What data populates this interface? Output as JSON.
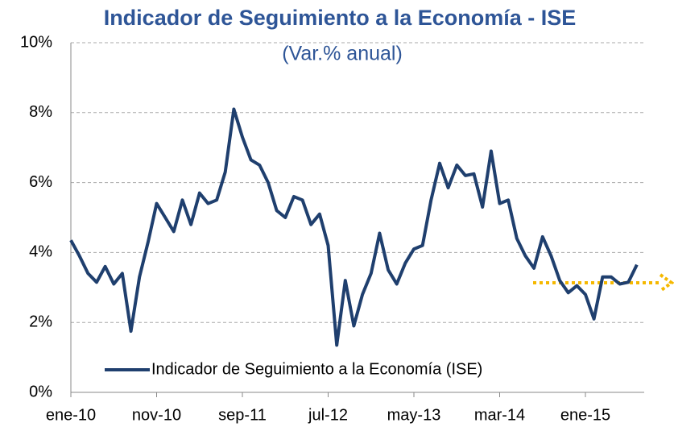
{
  "chart_data": {
    "type": "line",
    "title": "Indicador de Seguimiento a la Economía - ISE",
    "subtitle": "(Var.% anual)",
    "categories": [
      "ene-10",
      null,
      null,
      null,
      null,
      null,
      null,
      null,
      null,
      null,
      "nov-10",
      null,
      null,
      null,
      null,
      null,
      null,
      null,
      null,
      null,
      "sep-11",
      null,
      null,
      null,
      null,
      null,
      null,
      null,
      null,
      null,
      "jul-12",
      null,
      null,
      null,
      null,
      null,
      null,
      null,
      null,
      null,
      "may-13",
      null,
      null,
      null,
      null,
      null,
      null,
      null,
      null,
      null,
      "mar-14",
      null,
      null,
      null,
      null,
      null,
      null,
      null,
      null,
      null,
      "ene-15",
      null,
      null,
      null,
      null,
      null,
      null
    ],
    "series": [
      {
        "name": "Indicador de Seguimiento a la Economía (ISE)",
        "color": "#1f3f6e",
        "values": [
          4.35,
          3.9,
          3.4,
          3.15,
          3.6,
          3.1,
          3.4,
          1.75,
          3.3,
          4.3,
          5.4,
          5.0,
          4.6,
          5.5,
          4.8,
          5.7,
          5.4,
          5.5,
          6.3,
          8.1,
          7.3,
          6.65,
          6.5,
          6.0,
          5.2,
          5.0,
          5.6,
          5.5,
          4.8,
          5.1,
          4.2,
          1.35,
          3.2,
          1.9,
          2.8,
          3.4,
          4.55,
          3.5,
          3.1,
          3.7,
          4.1,
          4.2,
          5.5,
          6.55,
          5.85,
          6.5,
          6.2,
          6.25,
          5.3,
          6.9,
          5.4,
          5.5,
          4.4,
          3.9,
          3.55,
          4.45,
          3.9,
          3.2,
          2.85,
          3.05,
          2.8,
          2.1,
          3.3,
          3.3,
          3.1,
          3.15,
          3.65
        ]
      }
    ],
    "ylim": [
      0,
      10
    ],
    "yticks": [
      {
        "value": 0,
        "label": "0%"
      },
      {
        "value": 2,
        "label": "2%"
      },
      {
        "value": 4,
        "label": "4%"
      },
      {
        "value": 6,
        "label": "6%"
      },
      {
        "value": 8,
        "label": "8%"
      },
      {
        "value": 10,
        "label": "10%"
      }
    ],
    "grid": true
  }
}
